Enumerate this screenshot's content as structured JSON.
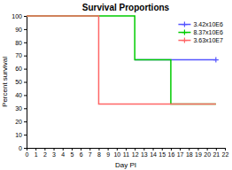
{
  "chart_data": {
    "type": "line",
    "title": "Survival Proportions",
    "xlabel": "Day PI",
    "ylabel": "Percent survival",
    "xlim": [
      0,
      22
    ],
    "ylim": [
      0,
      100
    ],
    "xticks": [
      0,
      1,
      2,
      3,
      4,
      5,
      6,
      7,
      8,
      9,
      10,
      11,
      12,
      13,
      14,
      15,
      16,
      17,
      18,
      19,
      20,
      21,
      22
    ],
    "yticks": [
      0,
      10,
      20,
      30,
      40,
      50,
      60,
      70,
      80,
      90,
      100
    ],
    "legend": "upper right",
    "series": [
      {
        "name": "3.42x10E6",
        "color": "#5555ff",
        "x": [
          12,
          21
        ],
        "values": [
          66.7,
          66.7
        ],
        "marker": "plus",
        "marker_x": [
          21
        ],
        "marker_values": [
          66.7
        ]
      },
      {
        "name": "8.37x10E6",
        "color": "#00cc00",
        "x": [
          0,
          12,
          12,
          16,
          16,
          21
        ],
        "values": [
          100,
          100,
          66.7,
          66.7,
          33.3,
          33.3
        ]
      },
      {
        "name": "3.63x10E7",
        "color": "#ff6666",
        "x": [
          0,
          8,
          8,
          21
        ],
        "values": [
          100,
          100,
          33.3,
          33.3
        ]
      }
    ]
  }
}
